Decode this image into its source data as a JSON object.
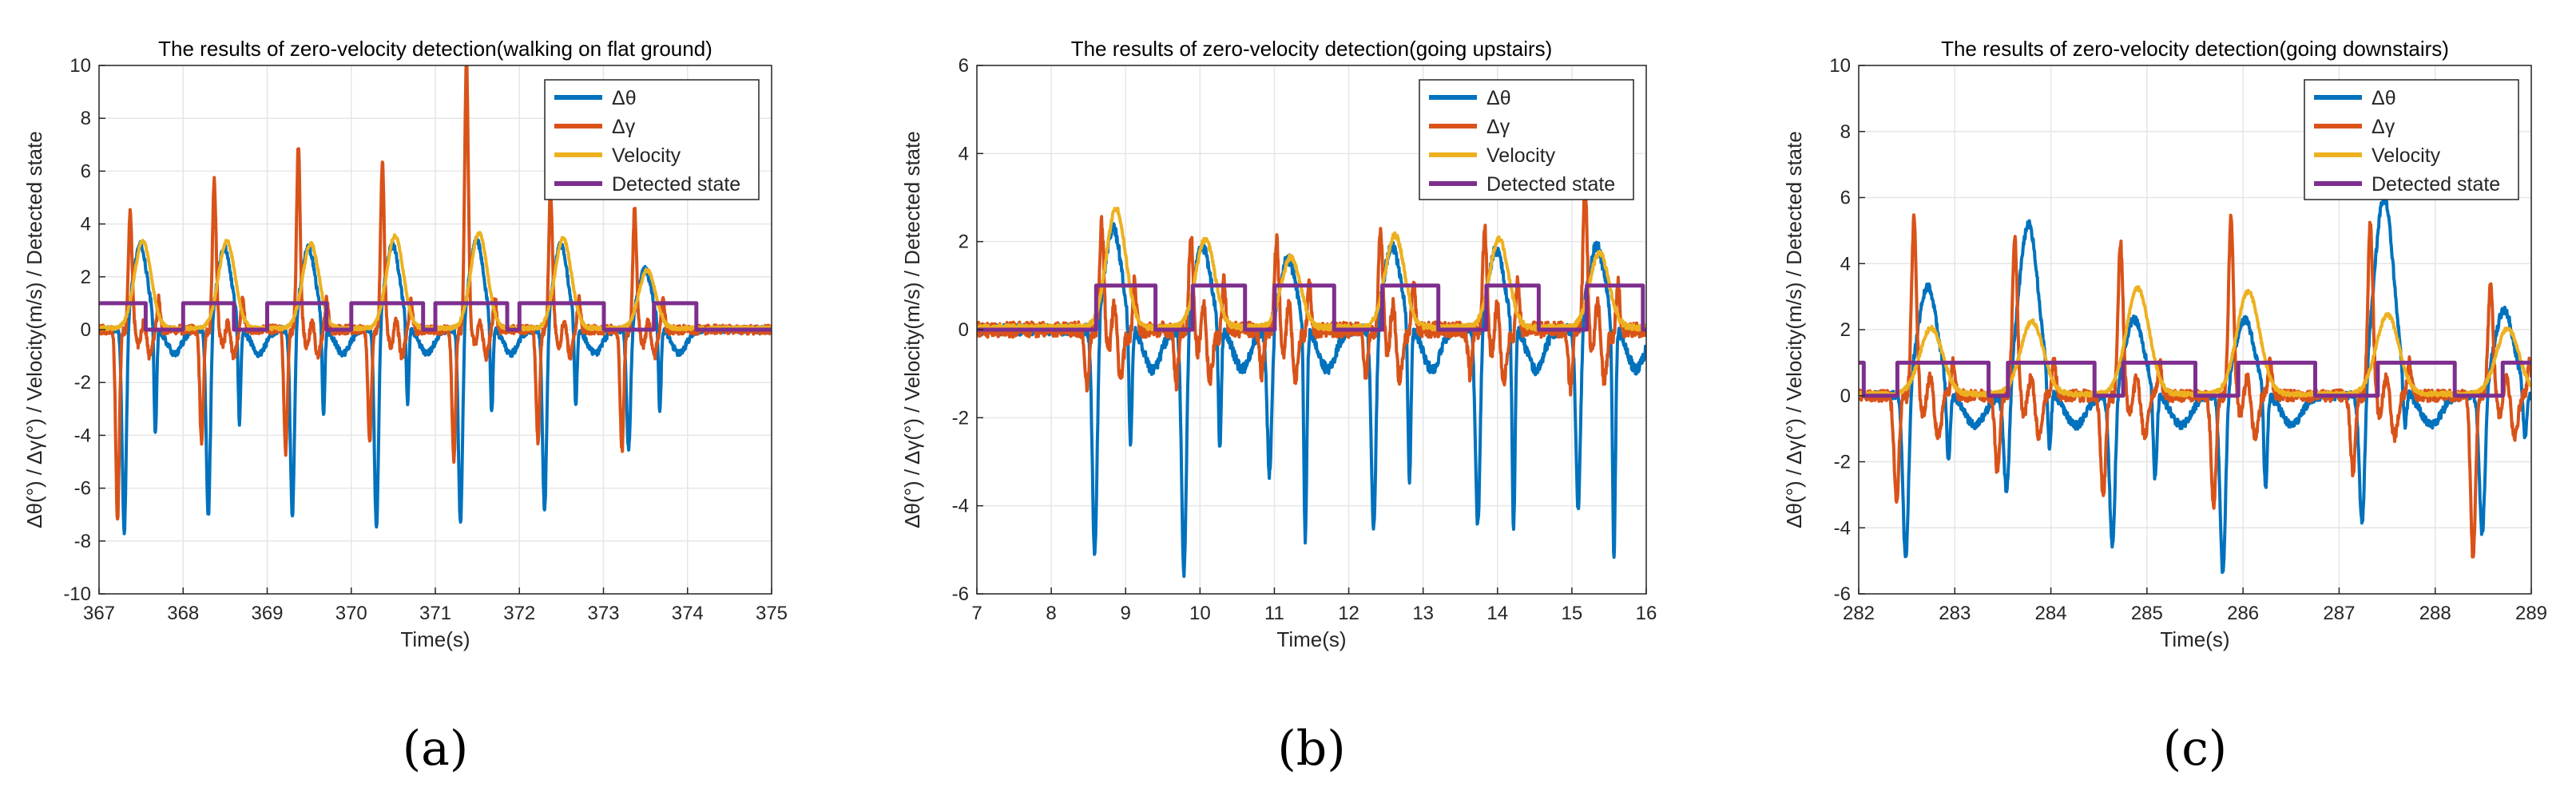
{
  "colors": {
    "dtheta": "#0072BD",
    "dgamma": "#D95319",
    "velocity": "#EDB120",
    "state": "#7E2F8E",
    "grid": "#e6e6e6"
  },
  "chart_data": [
    {
      "type": "line",
      "panel_label": "(a)",
      "title": "The results of zero-velocity detection(walking on flat ground)",
      "xlabel": "Time(s)",
      "ylabel": "Δθ(°) /  Δγ(°) / Velocity(m/s) /  Detected state",
      "xlim": [
        367,
        375
      ],
      "ylim": [
        -10,
        10
      ],
      "xticks": [
        "367",
        "368",
        "369",
        "370",
        "371",
        "372",
        "373",
        "374",
        "375"
      ],
      "yticks": [
        "-10",
        "-8",
        "-6",
        "-4",
        "-2",
        "0",
        "2",
        "4",
        "6",
        "8",
        "10"
      ],
      "grid": true,
      "legend_position": "top-right",
      "legend": [
        "Δθ",
        "Δγ",
        "Velocity",
        "Detected state"
      ],
      "steps": [
        367.35,
        368.35,
        369.35,
        370.35,
        371.35,
        372.35,
        373.35
      ],
      "series": [
        {
          "name": "Δθ",
          "spike_min": [
            -7.9,
            -7.3,
            -7.3,
            -7.8,
            -7.6,
            -7.1,
            -4.7
          ],
          "spike2_min": [
            -4.3,
            -3.8,
            -3.6,
            -3.1,
            -3.5,
            -3.2,
            -3.3
          ],
          "peak": [
            3.2,
            3.1,
            3.1,
            3.2,
            3.4,
            3.2,
            2.3
          ]
        },
        {
          "name": "Δγ",
          "spike_max": [
            4.3,
            5.4,
            6.7,
            6.2,
            10.0,
            5.1,
            4.4
          ],
          "spike_min": [
            -7.2,
            -4.3,
            -4.6,
            -4.2,
            -4.9,
            -4.2,
            -4.6
          ]
        },
        {
          "name": "Velocity",
          "peak": [
            3.3,
            3.3,
            3.2,
            3.5,
            3.6,
            3.4,
            2.2
          ]
        },
        {
          "name": "Detected state",
          "high": 1,
          "low": 0,
          "intervals": [
            [
              367.0,
              367.55
            ],
            [
              368.0,
              368.6
            ],
            [
              369.0,
              369.7
            ],
            [
              370.0,
              370.85
            ],
            [
              371.0,
              371.85
            ],
            [
              372.0,
              373.0
            ],
            [
              373.6,
              374.1
            ]
          ]
        }
      ]
    },
    {
      "type": "line",
      "panel_label": "(b)",
      "title": "The results of zero-velocity detection(going upstairs)",
      "xlabel": "Time(s)",
      "ylabel": "Δθ(°) /  Δγ(°) / Velocity(m/s) /  Detected state",
      "xlim": [
        7,
        16
      ],
      "ylim": [
        -6,
        6
      ],
      "xticks": [
        "7",
        "8",
        "9",
        "10",
        "11",
        "12",
        "13",
        "14",
        "15",
        "16"
      ],
      "yticks": [
        "-6",
        "-4",
        "-2",
        "0",
        "2",
        "4",
        "6"
      ],
      "grid": true,
      "legend_position": "top-right",
      "legend": [
        "Δθ",
        "Δγ",
        "Velocity",
        "Detected state"
      ],
      "steps": [
        8.65,
        9.85,
        11.0,
        12.4,
        13.8,
        15.15
      ],
      "series": [
        {
          "name": "Δθ",
          "spike_min": [
            -5.3,
            -5.7,
            -3.4,
            -4.6,
            -4.6,
            -4.2
          ],
          "spike2_min": [
            -2.8,
            -2.8,
            -4.9,
            -3.6,
            -4.7,
            -5.3
          ],
          "peak": [
            2.3,
            1.9,
            1.6,
            1.9,
            1.8,
            1.9
          ]
        },
        {
          "name": "Δγ",
          "spike_max": [
            2.2,
            1.9,
            1.8,
            2.0,
            2.0,
            3.1
          ],
          "spike_min": [
            -1.3,
            -1.2,
            -1.0,
            -1.0,
            -1.0,
            -1.3
          ]
        },
        {
          "name": "Velocity",
          "peak": [
            2.7,
            2.0,
            1.6,
            2.1,
            2.0,
            1.7
          ]
        },
        {
          "name": "Detected state",
          "high": 1,
          "low": 0,
          "intervals": [
            [
              8.6,
              9.4
            ],
            [
              9.9,
              10.6
            ],
            [
              11.0,
              11.8
            ],
            [
              12.45,
              13.2
            ],
            [
              13.85,
              14.55
            ],
            [
              15.2,
              15.95
            ]
          ]
        }
      ]
    },
    {
      "type": "line",
      "panel_label": "(c)",
      "title": "The results of zero-velocity detection(going downstairs)",
      "xlabel": "Time(s)",
      "ylabel": "Δθ(°) /  Δγ(°) / Velocity(m/s) /  Detected state",
      "xlim": [
        282,
        289
      ],
      "ylim": [
        -6,
        10
      ],
      "xticks": [
        "282",
        "283",
        "284",
        "285",
        "286",
        "287",
        "288",
        "289"
      ],
      "yticks": [
        "-6",
        "-4",
        "-2",
        "0",
        "2",
        "4",
        "6",
        "8",
        "10"
      ],
      "grid": true,
      "legend_position": "top-right",
      "legend": [
        "Δθ",
        "Δγ",
        "Velocity",
        "Detected state"
      ],
      "steps": [
        282.55,
        283.6,
        284.7,
        285.85,
        287.3,
        288.55
      ],
      "series": [
        {
          "name": "Δθ",
          "spike_min": [
            -5.2,
            -3.3,
            -4.7,
            -5.5,
            -4.3,
            -4.4
          ],
          "spike2_min": [
            -2.3,
            -2.1,
            -2.7,
            -3.0,
            -1.5,
            -1.5
          ],
          "peak": [
            3.3,
            5.2,
            2.3,
            2.3,
            6.0,
            2.6
          ]
        },
        {
          "name": "Δγ",
          "spike_max": [
            5.1,
            4.5,
            4.4,
            5.2,
            5.0,
            3.1
          ],
          "spike_min": [
            -3.2,
            -2.3,
            -3.1,
            -3.3,
            -2.3,
            -4.9
          ]
        },
        {
          "name": "Velocity",
          "peak": [
            2.0,
            2.2,
            3.2,
            3.1,
            2.4,
            2.0
          ]
        },
        {
          "name": "Detected state",
          "high": 1,
          "low": 0,
          "intervals": [
            [
              282.0,
              282.05
            ],
            [
              282.4,
              283.35
            ],
            [
              283.55,
              284.45
            ],
            [
              284.75,
              285.5
            ],
            [
              285.95,
              286.75
            ],
            [
              287.4,
              288.2
            ],
            [
              288.7,
              289.0
            ]
          ]
        }
      ]
    }
  ]
}
